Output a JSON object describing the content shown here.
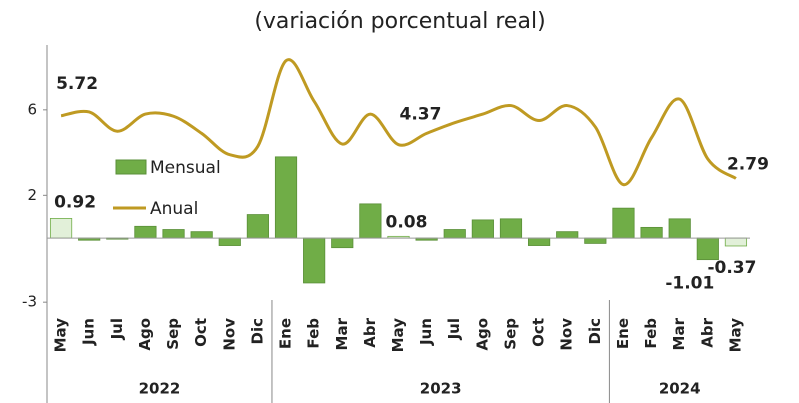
{
  "chart_data": {
    "type": "bar-line",
    "title": "(variación porcentual real)",
    "categories": [
      "May",
      "Jun",
      "Jul",
      "Ago",
      "Sep",
      "Oct",
      "Nov",
      "Dic",
      "Ene",
      "Feb",
      "Mar",
      "Abr",
      "May",
      "Jun",
      "Jul",
      "Ago",
      "Sep",
      "Oct",
      "Nov",
      "Dic",
      "Ene",
      "Feb",
      "Mar",
      "Abr",
      "May"
    ],
    "years": [
      "2022",
      "2023",
      "2024"
    ],
    "series": [
      {
        "name": "Mensual",
        "type": "bar",
        "color": "#70ad47",
        "values": [
          0.92,
          -0.1,
          -0.05,
          0.55,
          0.4,
          0.3,
          -0.35,
          1.1,
          3.8,
          -2.1,
          -0.45,
          1.6,
          0.08,
          -0.1,
          0.4,
          0.85,
          0.9,
          -0.35,
          0.3,
          -0.25,
          1.4,
          0.5,
          0.9,
          -1.01,
          -0.37
        ]
      },
      {
        "name": "Anual",
        "type": "line",
        "color": "#bf9a22",
        "values": [
          5.72,
          5.9,
          5.0,
          5.8,
          5.7,
          4.9,
          3.9,
          4.3,
          8.3,
          6.4,
          4.4,
          5.8,
          4.37,
          4.9,
          5.4,
          5.8,
          6.2,
          5.5,
          6.2,
          5.2,
          2.5,
          4.7,
          6.5,
          3.7,
          2.79
        ]
      }
    ],
    "ylim": [
      -3.6,
      8.8
    ],
    "yticks": [
      -3,
      2,
      6
    ]
  }
}
